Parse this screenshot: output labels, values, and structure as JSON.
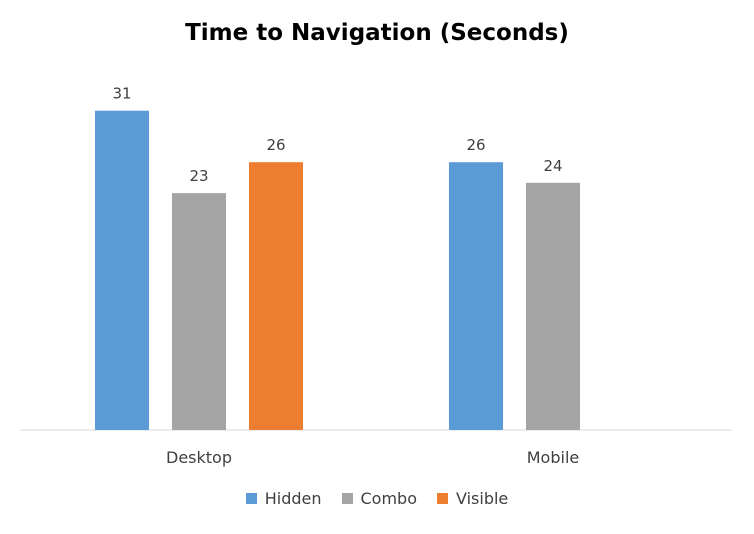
{
  "chart_data": {
    "type": "bar",
    "title": "Time to Navigation (Seconds)",
    "xlabel": "",
    "ylabel": "",
    "categories": [
      "Desktop",
      "Mobile"
    ],
    "series": [
      {
        "name": "Hidden",
        "color": "#5B9BD5",
        "values": [
          31,
          26
        ]
      },
      {
        "name": "Combo",
        "color": "#A5A5A5",
        "values": [
          23,
          24
        ]
      },
      {
        "name": "Visible",
        "color": "#ED7D31",
        "values": [
          26,
          null
        ]
      }
    ],
    "ylim": [
      0,
      35
    ],
    "grid": false,
    "legend": "bottom"
  }
}
